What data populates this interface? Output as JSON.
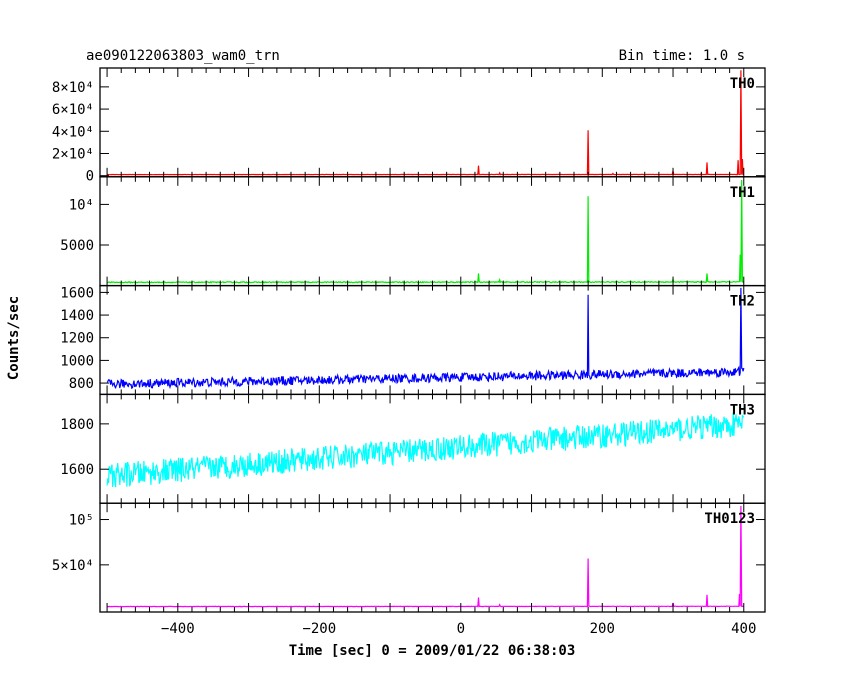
{
  "chart_data": {
    "type": "line",
    "title_left": "ae090122063803_wam0_trn",
    "title_right": "Bin time: 1.0 s",
    "xlabel": "Time [sec] 0 = 2009/01/22 06:38:03",
    "ylabel": "Counts/sec",
    "xlim": [
      -510,
      430
    ],
    "x_ticks": [
      -400,
      -200,
      0,
      200,
      400
    ],
    "panels": [
      {
        "name": "TH0",
        "color": "#ff0000",
        "ylim": [
          -1000,
          97000
        ],
        "y_ticks": [
          {
            "value": 0,
            "label": "0"
          },
          {
            "value": 20000,
            "label": "2×10⁴"
          },
          {
            "value": 40000,
            "label": "4×10⁴"
          },
          {
            "value": 60000,
            "label": "6×10⁴"
          },
          {
            "value": 80000,
            "label": "8×10⁴"
          }
        ],
        "baseline_start": 1000,
        "baseline_end": 1100,
        "noise": 100,
        "spikes": [
          [
            25,
            9000
          ],
          [
            55,
            2500
          ],
          [
            180,
            41000
          ],
          [
            215,
            2000
          ],
          [
            300,
            4500
          ],
          [
            340,
            2000
          ],
          [
            348,
            12000
          ],
          [
            392,
            14000
          ],
          [
            396,
            95000
          ],
          [
            398,
            15000
          ]
        ]
      },
      {
        "name": "TH1",
        "color": "#00ee00",
        "ylim": [
          0,
          13400
        ],
        "y_ticks": [
          {
            "value": 5000,
            "label": "5000"
          },
          {
            "value": 10000,
            "label": "10⁴"
          }
        ],
        "baseline_start": 400,
        "baseline_end": 450,
        "noise": 60,
        "spikes": [
          [
            25,
            1500
          ],
          [
            55,
            700
          ],
          [
            180,
            11000
          ],
          [
            300,
            800
          ],
          [
            348,
            1500
          ],
          [
            395,
            3800
          ],
          [
            397,
            13000
          ]
        ]
      },
      {
        "name": "TH2",
        "color": "#0000ff",
        "ylim": [
          700,
          1660
        ],
        "y_ticks": [
          {
            "value": 800,
            "label": "800"
          },
          {
            "value": 1000,
            "label": "1000"
          },
          {
            "value": 1200,
            "label": "1200"
          },
          {
            "value": 1400,
            "label": "1400"
          },
          {
            "value": 1600,
            "label": "1600"
          }
        ],
        "baseline_start": 790,
        "baseline_end": 900,
        "noise": 40,
        "spikes": [
          [
            180,
            1580
          ],
          [
            396,
            1640
          ]
        ]
      },
      {
        "name": "TH3",
        "color": "#00ffff",
        "ylim": [
          1450,
          1930
        ],
        "y_ticks": [
          {
            "value": 1600,
            "label": "1600"
          },
          {
            "value": 1800,
            "label": "1800"
          }
        ],
        "baseline_start": 1570,
        "baseline_end": 1800,
        "noise": 55,
        "spikes": []
      },
      {
        "name": "TH0123",
        "color": "#ff00ff",
        "ylim": [
          -2000,
          118000
        ],
        "y_ticks": [
          {
            "value": 50000,
            "label": "5×10⁴"
          },
          {
            "value": 100000,
            "label": "10⁵"
          }
        ],
        "baseline_start": 4000,
        "baseline_end": 4300,
        "noise": 200,
        "spikes": [
          [
            25,
            14000
          ],
          [
            55,
            6000
          ],
          [
            180,
            57000
          ],
          [
            300,
            8000
          ],
          [
            348,
            17000
          ],
          [
            394,
            18000
          ],
          [
            396,
            115000
          ]
        ]
      }
    ]
  }
}
